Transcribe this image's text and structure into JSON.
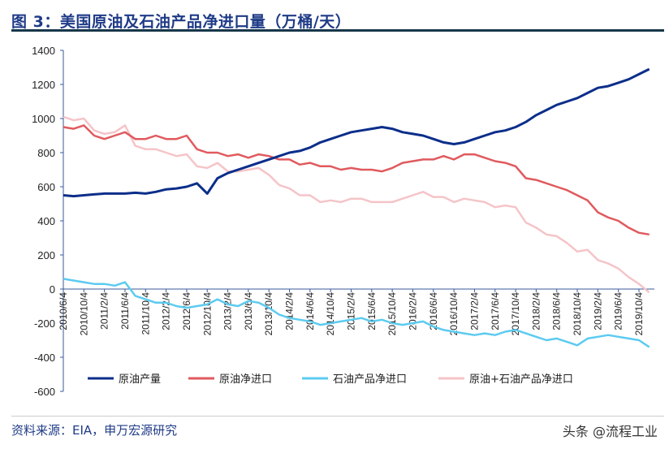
{
  "title": "图 3：美国原油及石油产品净进口量（万桶/天）",
  "source": "资料来源：EIA，申万宏源研究",
  "watermark": "头条 @流程工业",
  "chart_data": {
    "type": "line",
    "title": "",
    "xlabel": "",
    "ylabel": "",
    "ylim": [
      -600,
      1400
    ],
    "yticks": [
      -600,
      -400,
      -200,
      0,
      200,
      400,
      600,
      800,
      1000,
      1200,
      1400
    ],
    "xtick_labels": [
      "2010/6/4",
      "2010/10/4",
      "2011/2/4",
      "2011/6/4",
      "2011/10/4",
      "2012/2/4",
      "2012/6/4",
      "2012/10/4",
      "2013/2/4",
      "2013/6/4",
      "2013/10/4",
      "2014/2/4",
      "2014/6/4",
      "2014/10/4",
      "2015/2/4",
      "2015/6/4",
      "2015/10/4",
      "2016/2/4",
      "2016/6/4",
      "2016/10/4",
      "2017/2/4",
      "2017/6/4",
      "2017/10/4",
      "2018/2/4",
      "2018/6/4",
      "2018/10/4",
      "2019/2/4",
      "2019/6/4",
      "2019/10/4"
    ],
    "grid": false,
    "legend_position": "bottom",
    "x": [
      "2010/6",
      "2010/8",
      "2010/10",
      "2010/12",
      "2011/2",
      "2011/4",
      "2011/6",
      "2011/8",
      "2011/10",
      "2011/12",
      "2012/2",
      "2012/4",
      "2012/6",
      "2012/8",
      "2012/10",
      "2012/12",
      "2013/2",
      "2013/4",
      "2013/6",
      "2013/8",
      "2013/10",
      "2013/12",
      "2014/2",
      "2014/4",
      "2014/6",
      "2014/8",
      "2014/10",
      "2014/12",
      "2015/2",
      "2015/4",
      "2015/6",
      "2015/8",
      "2015/10",
      "2015/12",
      "2016/2",
      "2016/4",
      "2016/6",
      "2016/8",
      "2016/10",
      "2016/12",
      "2017/2",
      "2017/4",
      "2017/6",
      "2017/8",
      "2017/10",
      "2017/12",
      "2018/2",
      "2018/4",
      "2018/6",
      "2018/8",
      "2018/10",
      "2018/12",
      "2019/2",
      "2019/4",
      "2019/6",
      "2019/8",
      "2019/10",
      "2019/12"
    ],
    "series": [
      {
        "name": "原油产量",
        "color": "#0b2e8a",
        "values": [
          550,
          545,
          550,
          555,
          560,
          560,
          560,
          565,
          560,
          570,
          585,
          590,
          600,
          620,
          560,
          650,
          680,
          700,
          720,
          740,
          760,
          780,
          800,
          810,
          830,
          860,
          880,
          900,
          920,
          930,
          940,
          950,
          940,
          920,
          910,
          900,
          880,
          860,
          850,
          860,
          880,
          900,
          920,
          930,
          950,
          980,
          1020,
          1050,
          1080,
          1100,
          1120,
          1150,
          1180,
          1190,
          1210,
          1230,
          1260,
          1290
        ]
      },
      {
        "name": "原油净进口",
        "color": "#e05a5e",
        "values": [
          950,
          940,
          960,
          900,
          880,
          900,
          920,
          880,
          880,
          900,
          880,
          880,
          900,
          820,
          800,
          800,
          780,
          790,
          770,
          790,
          780,
          760,
          760,
          730,
          740,
          720,
          720,
          700,
          710,
          700,
          700,
          690,
          710,
          740,
          750,
          760,
          760,
          780,
          760,
          790,
          790,
          770,
          750,
          740,
          720,
          650,
          640,
          620,
          600,
          580,
          550,
          520,
          450,
          420,
          400,
          360,
          330,
          320
        ]
      },
      {
        "name": "石油产品净进口",
        "color": "#5ccbf0",
        "values": [
          60,
          50,
          40,
          30,
          30,
          20,
          40,
          -40,
          -60,
          -80,
          -80,
          -100,
          -110,
          -100,
          -90,
          -60,
          -90,
          -100,
          -70,
          -80,
          -110,
          -150,
          -170,
          -180,
          -190,
          -210,
          -200,
          -190,
          -180,
          -170,
          -190,
          -180,
          -200,
          -210,
          -200,
          -190,
          -220,
          -240,
          -250,
          -260,
          -270,
          -260,
          -270,
          -250,
          -240,
          -260,
          -280,
          -300,
          -290,
          -310,
          -330,
          -290,
          -280,
          -270,
          -280,
          -290,
          -300,
          -340
        ]
      },
      {
        "name": "原油+石油产品净进口",
        "color": "#f5c4c8",
        "values": [
          1010,
          990,
          1000,
          930,
          910,
          920,
          960,
          840,
          820,
          820,
          800,
          780,
          790,
          720,
          710,
          740,
          690,
          690,
          700,
          710,
          670,
          610,
          590,
          550,
          550,
          510,
          520,
          510,
          530,
          530,
          510,
          510,
          510,
          530,
          550,
          570,
          540,
          540,
          510,
          530,
          520,
          510,
          480,
          490,
          480,
          390,
          360,
          320,
          310,
          270,
          220,
          230,
          170,
          150,
          120,
          70,
          30,
          -20
        ]
      }
    ]
  }
}
